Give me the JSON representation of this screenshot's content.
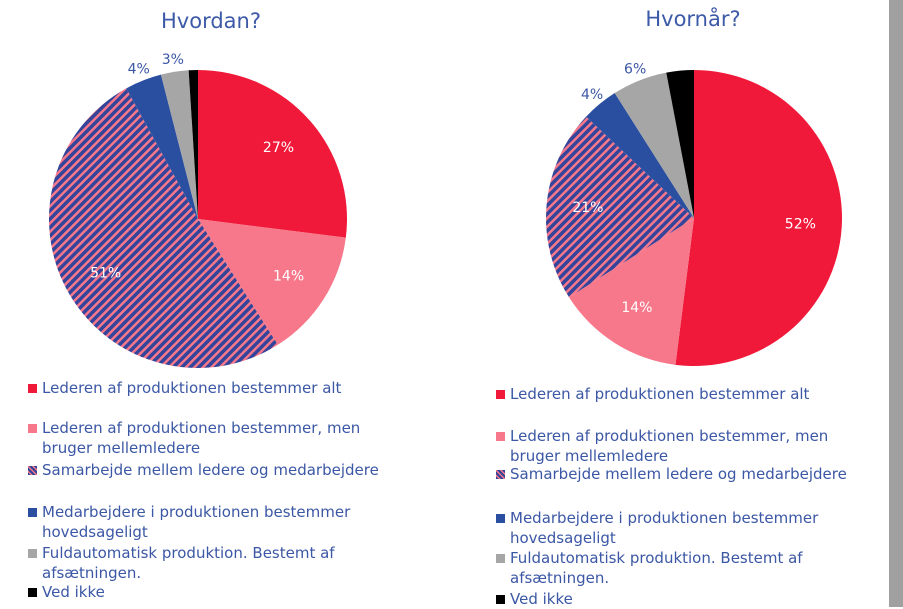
{
  "chart_data": [
    {
      "type": "pie",
      "title": "Hvordan?",
      "categories": [
        "Lederen af produktionen bestemmer alt",
        "Lederen af produktionen bestemmer, men bruger mellemledere",
        "Samarbejde mellem ledere og medarbejdere",
        "Medarbejdere i produktionen bestemmer hovedsageligt",
        "Fuldautomatisk produktion. Bestemt af afsætningen.",
        "Ved ikke"
      ],
      "values": [
        27,
        14,
        51,
        4,
        3,
        1
      ],
      "value_labels": [
        "27%",
        "14%",
        "51%",
        "4%",
        "3%",
        null
      ],
      "colors": [
        "#f0193a",
        "#f7788a",
        "#34449a",
        "#2a4fa0",
        "#a6a6a6",
        "#000000"
      ],
      "patterns": [
        null,
        null,
        "hatch",
        null,
        null,
        null
      ],
      "hatch_color": "#f7788a"
    },
    {
      "type": "pie",
      "title": "Hvornår?",
      "categories": [
        "Lederen af produktionen bestemmer alt",
        "Lederen af produktionen bestemmer, men bruger mellemledere",
        "Samarbejde mellem ledere og medarbejdere",
        "Medarbejdere i produktionen bestemmer hovedsageligt",
        "Fuldautomatisk produktion. Bestemt af afsætningen.",
        "Ved ikke"
      ],
      "values": [
        52,
        14,
        21,
        4,
        6,
        3
      ],
      "value_labels": [
        "52%",
        "14%",
        "21%",
        "4%",
        "6%",
        null
      ],
      "colors": [
        "#f0193a",
        "#f7788a",
        "#34449a",
        "#2a4fa0",
        "#a6a6a6",
        "#000000"
      ],
      "patterns": [
        null,
        null,
        "hatch",
        null,
        null,
        null
      ],
      "hatch_color": "#f7788a"
    }
  ]
}
